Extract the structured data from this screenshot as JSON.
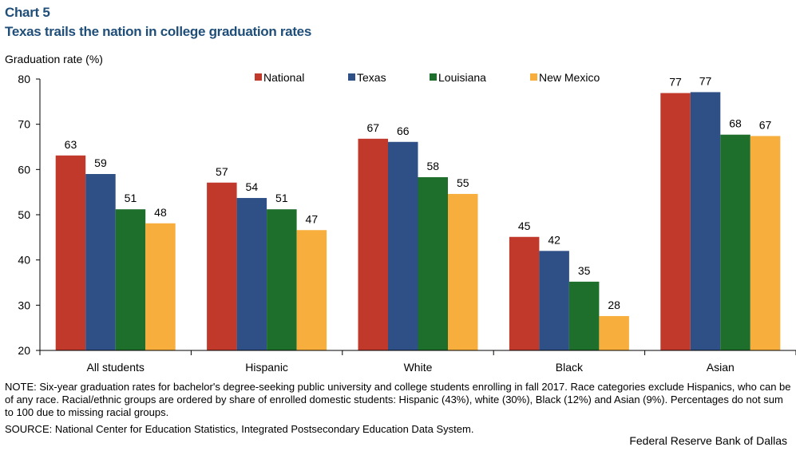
{
  "header": {
    "chart_label": "Chart 5",
    "title": "Texas trails the nation in college graduation rates"
  },
  "footer": {
    "note": "NOTE: Six-year graduation rates for bachelor's degree-seeking public university and college students enrolling in fall 2017. Race categories exclude Hispanics, who can be of any race. Racial/ethnic groups are ordered by share of enrolled domestic students: Hispanic (43%), white (30%), Black (12%) and Asian (9%). Percentages do not sum to 100 due to missing racial groups.",
    "source": "SOURCE: National Center for Education Statistics, Integrated Postsecondary Education Data System.",
    "credit": "Federal Reserve Bank of Dallas"
  },
  "chart_data": {
    "type": "bar",
    "title": "Texas trails the nation in college graduation rates",
    "xlabel": "",
    "ylabel": "Graduation rate (%)",
    "ylim": [
      20,
      80
    ],
    "yticks": [
      20,
      30,
      40,
      50,
      60,
      70,
      80
    ],
    "grid": false,
    "legend_position": "top",
    "categories": [
      "All students",
      "Hispanic",
      "White",
      "Black",
      "Asian"
    ],
    "series": [
      {
        "name": "National",
        "color": "#c0392b",
        "values": [
          63,
          57,
          67,
          45,
          77
        ],
        "plot_values": [
          63.1,
          57.1,
          66.8,
          45.1,
          76.9
        ]
      },
      {
        "name": "Texas",
        "color": "#2e5086",
        "values": [
          59,
          54,
          66,
          42,
          77
        ],
        "plot_values": [
          59.0,
          53.7,
          66.1,
          42.0,
          77.1
        ]
      },
      {
        "name": "Louisiana",
        "color": "#1e6e2c",
        "values": [
          51,
          51,
          58,
          35,
          68
        ],
        "plot_values": [
          51.2,
          51.2,
          58.3,
          35.2,
          67.7
        ]
      },
      {
        "name": "New Mexico",
        "color": "#f7ae3d",
        "values": [
          48,
          47,
          55,
          28,
          67
        ],
        "plot_values": [
          48.1,
          46.6,
          54.6,
          27.6,
          67.4
        ]
      }
    ]
  }
}
